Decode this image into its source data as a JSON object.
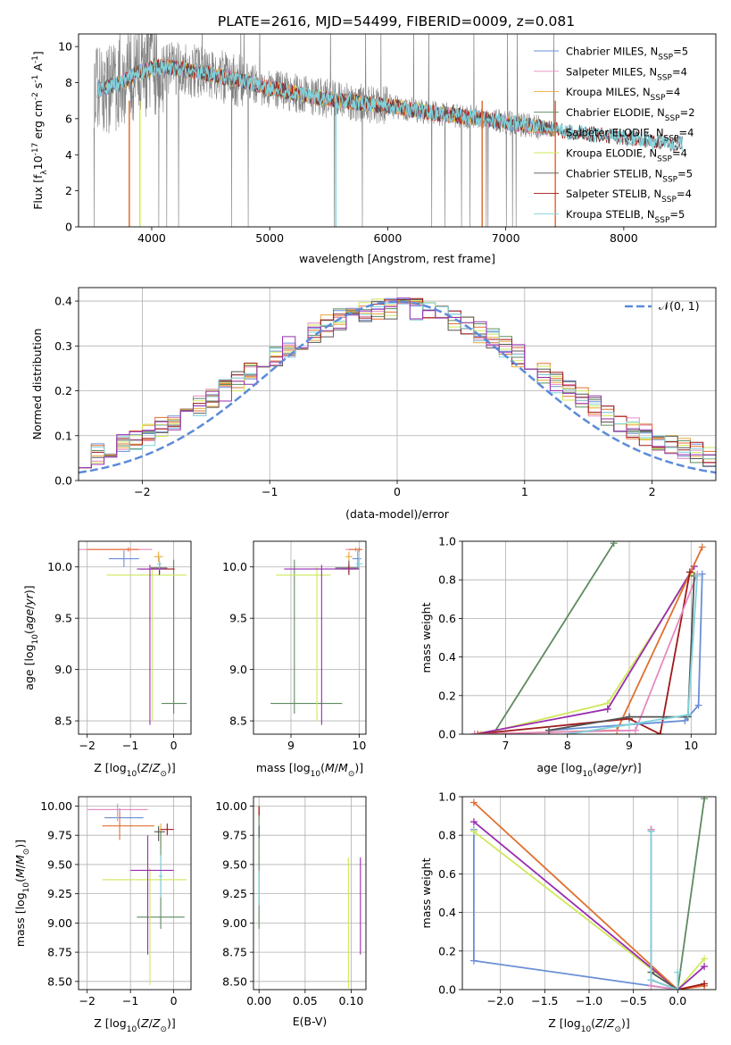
{
  "figure_title": "PLATE=2616, MJD=54499, FIBERID=0009, z=0.081",
  "colors": {
    "Chabrier MILES": "#6a8fd6",
    "Salpeter MILES": "#e58ac0",
    "Kroupa MILES": "#e8a93a",
    "Chabrier ELODIE": "#5e8a60",
    "Salpeter ELODIE": "#e07030",
    "Kroupa ELODIE": "#cfe85a",
    "Chabrier STELIB": "#555555",
    "Salpeter STELIB": "#a01818",
    "Kroupa STELIB": "#7ed3dc",
    "extra": "#9a2db0",
    "data": "#808080",
    "normal": "#5b8bd9"
  },
  "chart_data": [
    {
      "id": "spectrum",
      "type": "line",
      "xlabel": "wavelength [Angstrom, rest frame]",
      "ylabel_parts": [
        "Flux [f",
        "λ",
        "10",
        "-17",
        " erg cm",
        "-2",
        " s",
        "-1",
        " A",
        "-1",
        "]"
      ],
      "xlim": [
        3380,
        8780
      ],
      "ylim": [
        0,
        10.7
      ],
      "xticks": [
        4000,
        5000,
        6000,
        7000,
        8000
      ],
      "yticks": [
        0,
        2,
        4,
        6,
        8,
        10
      ],
      "legend": [
        {
          "base": "Chabrier MILES, N",
          "sub": "SSP",
          "post": "=5",
          "color": "Chabrier MILES"
        },
        {
          "base": "Salpeter MILES, N",
          "sub": "SSP",
          "post": "=4",
          "color": "Salpeter MILES"
        },
        {
          "base": "Kroupa MILES, N",
          "sub": "SSP",
          "post": "=4",
          "color": "Kroupa MILES"
        },
        {
          "base": "Chabrier ELODIE, N",
          "sub": "SSP",
          "post": "=2",
          "color": "Chabrier ELODIE"
        },
        {
          "base": "Salpeter ELODIE, N",
          "sub": "SSP",
          "post": "=4",
          "color": "Salpeter ELODIE"
        },
        {
          "base": "Kroupa ELODIE, N",
          "sub": "SSP",
          "post": "=4",
          "color": "Kroupa ELODIE"
        },
        {
          "base": "Chabrier STELIB, N",
          "sub": "SSP",
          "post": "=5",
          "color": "Chabrier STELIB"
        },
        {
          "base": "Salpeter STELIB, N",
          "sub": "SSP",
          "post": "=4",
          "color": "Salpeter STELIB"
        },
        {
          "base": "Kroupa STELIB, N",
          "sub": "SSP",
          "post": "=5",
          "color": "Kroupa STELIB"
        }
      ],
      "continuum": {
        "x": [
          3550,
          3700,
          3900,
          4100,
          4400,
          4700,
          5000,
          5300,
          5600,
          6000,
          6400,
          6800,
          7200,
          7500,
          7800,
          8100,
          8400
        ],
        "y": [
          7.6,
          7.9,
          8.6,
          8.9,
          8.6,
          8.2,
          7.7,
          7.3,
          7.0,
          6.7,
          6.3,
          6.0,
          5.6,
          5.3,
          5.1,
          4.9,
          4.6
        ]
      },
      "model_ranges": {
        "full": [
          3510,
          7420
        ],
        "elodie": [
          3800,
          6800
        ],
        "miles": [
          3540,
          7420
        ],
        "stelib": [
          3540,
          8500
        ]
      }
    },
    {
      "id": "residuals",
      "type": "histogram",
      "xlabel": "(data-model)/error",
      "ylabel": "Normed distribution",
      "xlim": [
        -2.5,
        2.5
      ],
      "ylim": [
        0,
        0.43
      ],
      "xticks": [
        -2,
        -1,
        0,
        1,
        2
      ],
      "yticks": [
        0,
        0.1,
        0.2,
        0.3,
        0.4
      ],
      "bin_width": 0.1,
      "legend_label": "𝒩(0, 1)",
      "normal_curve": {
        "mean": 0,
        "sigma": 1
      }
    },
    {
      "id": "age-vs-z",
      "type": "errorbar",
      "xlabel_base": "Z [log",
      "xlabel_sub": "10",
      "xlabel_post": "(Z/Z",
      "xlabel_sun": "⊙",
      "xlabel_end": ")]",
      "ylabel_text": "age  [log₁₀(age/yr)]",
      "xlim": [
        -2.2,
        0.4
      ],
      "ylim": [
        8.37,
        10.25
      ],
      "xticks": [
        -2,
        -1,
        0
      ],
      "yticks": [
        8.5,
        9.0,
        9.5,
        10.0
      ],
      "points": [
        {
          "c": "Chabrier MILES",
          "x": -1.15,
          "xe": [
            0.35,
            0.35
          ],
          "y": 10.08,
          "ye": [
            0.08,
            0.08
          ]
        },
        {
          "c": "Salpeter MILES",
          "x": -1.0,
          "xe": [
            1.2,
            0.5
          ],
          "y": 10.17,
          "ye": [
            0.02,
            0.02
          ]
        },
        {
          "c": "Kroupa MILES",
          "x": -0.35,
          "xe": [
            0.1,
            0.1
          ],
          "y": 10.1,
          "ye": [
            0.05,
            0.05
          ]
        },
        {
          "c": "Chabrier ELODIE",
          "x": 0.0,
          "xe": [
            0.28,
            0.3
          ],
          "y": 8.67,
          "ye": [
            0.1,
            1.4
          ]
        },
        {
          "c": "Salpeter ELODIE",
          "x": -1.05,
          "xe": [
            0.95,
            0.25
          ],
          "y": 10.17,
          "ye": [
            0.02,
            0.02
          ]
        },
        {
          "c": "Kroupa ELODIE",
          "x": -0.5,
          "xe": [
            1.05,
            0.8
          ],
          "y": 9.92,
          "ye": [
            1.42,
            0.08
          ]
        },
        {
          "c": "Chabrier STELIB",
          "x": -0.33,
          "xe": [
            0.2,
            0.18
          ],
          "y": 9.99,
          "ye": [
            0.07,
            0.07
          ]
        },
        {
          "c": "Salpeter STELIB",
          "x": -0.33,
          "xe": [
            0.45,
            0.35
          ],
          "y": 9.98,
          "ye": [
            0.05,
            0.05
          ]
        },
        {
          "c": "Kroupa STELIB",
          "x": -0.33,
          "xe": [
            0.05,
            0.05
          ],
          "y": 10.03,
          "ye": [
            0.06,
            0.06
          ]
        },
        {
          "c": "extra",
          "x": -0.55,
          "xe": [
            0.3,
            0.35
          ],
          "y": 9.98,
          "ye": [
            1.52,
            0.04
          ]
        }
      ]
    },
    {
      "id": "age-vs-mass",
      "type": "errorbar",
      "xlabel_base": "mass [log",
      "xlabel_sub": "10",
      "xlabel_post": "(M/M",
      "xlabel_sun": "⊙",
      "xlabel_end": ")]",
      "xlim": [
        8.45,
        10.1
      ],
      "ylim": [
        8.37,
        10.25
      ],
      "xticks": [
        9,
        10
      ],
      "yticks": [
        8.5,
        9.0,
        9.5,
        10.0
      ],
      "points": [
        {
          "c": "Chabrier MILES",
          "x": 9.98,
          "xe": [
            0.08,
            0.05
          ],
          "y": 10.08,
          "ye": [
            0.08,
            0.08
          ]
        },
        {
          "c": "Salpeter MILES",
          "x": 9.95,
          "xe": [
            0.15,
            0.08
          ],
          "y": 10.17,
          "ye": [
            0.02,
            0.02
          ]
        },
        {
          "c": "Kroupa MILES",
          "x": 9.85,
          "xe": [
            0.05,
            0.05
          ],
          "y": 10.1,
          "ye": [
            0.05,
            0.05
          ]
        },
        {
          "c": "Chabrier ELODIE",
          "x": 9.05,
          "xe": [
            0.35,
            0.7
          ],
          "y": 8.67,
          "ye": [
            0.1,
            1.4
          ]
        },
        {
          "c": "Salpeter ELODIE",
          "x": 10.0,
          "xe": [
            0.15,
            0.05
          ],
          "y": 10.17,
          "ye": [
            0.02,
            0.02
          ]
        },
        {
          "c": "Kroupa ELODIE",
          "x": 9.38,
          "xe": [
            0.6,
            0.2
          ],
          "y": 9.92,
          "ye": [
            1.42,
            0.08
          ]
        },
        {
          "c": "Chabrier STELIB",
          "x": 9.85,
          "xe": [
            0.2,
            0.15
          ],
          "y": 9.99,
          "ye": [
            0.07,
            0.07
          ]
        },
        {
          "c": "Salpeter STELIB",
          "x": 9.85,
          "xe": [
            0.1,
            0.1
          ],
          "y": 9.98,
          "ye": [
            0.05,
            0.05
          ]
        },
        {
          "c": "Kroupa STELIB",
          "x": 10.0,
          "xe": [
            0.05,
            0.05
          ],
          "y": 10.03,
          "ye": [
            0.06,
            0.06
          ]
        },
        {
          "c": "extra",
          "x": 9.45,
          "xe": [
            0.55,
            0.55
          ],
          "y": 9.98,
          "ye": [
            1.52,
            0.04
          ]
        }
      ]
    },
    {
      "id": "mass-weight-vs-age",
      "type": "line",
      "xlabel": "age  [log₁₀(age/yr)]",
      "ylabel": "mass weight",
      "xlim": [
        6.3,
        10.4
      ],
      "ylim": [
        0,
        1.0
      ],
      "xticks": [
        7,
        8,
        9,
        10
      ],
      "yticks": [
        0,
        0.2,
        0.4,
        0.6,
        0.8,
        1.0
      ],
      "series": [
        {
          "c": "Chabrier ELODIE",
          "x": [
            6.8,
            8.75
          ],
          "y": [
            0.0,
            0.99
          ]
        },
        {
          "c": "Kroupa ELODIE",
          "x": [
            6.6,
            8.65,
            10.02
          ],
          "y": [
            0.0,
            0.16,
            0.84
          ]
        },
        {
          "c": "extra",
          "x": [
            6.5,
            8.65,
            10.05
          ],
          "y": [
            0.0,
            0.13,
            0.87
          ]
        },
        {
          "c": "Salpeter ELODIE",
          "x": [
            6.55,
            8.8,
            10.18
          ],
          "y": [
            0.0,
            0.02,
            0.97
          ]
        },
        {
          "c": "Salpeter STELIB",
          "x": [
            6.5,
            9.0,
            9.5,
            9.98
          ],
          "y": [
            0.0,
            0.08,
            0.0,
            0.84
          ]
        },
        {
          "c": "Salpeter MILES",
          "x": [
            6.5,
            9.1,
            10.1
          ],
          "y": [
            0.0,
            0.02,
            0.83
          ]
        },
        {
          "c": "Chabrier MILES",
          "x": [
            7.7,
            9.9,
            10.12,
            10.18
          ],
          "y": [
            0.02,
            0.07,
            0.15,
            0.83
          ]
        },
        {
          "c": "Chabrier STELIB",
          "x": [
            7.7,
            9.0,
            9.95,
            10.05
          ],
          "y": [
            0.02,
            0.09,
            0.09,
            0.82
          ]
        },
        {
          "c": "Kroupa STELIB",
          "x": [
            8.0,
            9.0,
            9.95,
            10.1
          ],
          "y": [
            0.0,
            0.05,
            0.1,
            0.82
          ]
        }
      ]
    },
    {
      "id": "mass-vs-z",
      "type": "errorbar",
      "xlabel_base": "Z [log",
      "xlabel_sub": "10",
      "xlabel_post": "(Z/Z",
      "xlabel_sun": "⊙",
      "xlabel_end": ")]",
      "ylabel_text": "mass [log₁₀(M/M⊙)]",
      "xlim": [
        -2.2,
        0.4
      ],
      "ylim": [
        8.43,
        10.08
      ],
      "xticks": [
        -2,
        -1,
        0
      ],
      "yticks": [
        8.5,
        8.75,
        9.0,
        9.25,
        9.5,
        9.75,
        10.0
      ],
      "points": [
        {
          "c": "Chabrier MILES",
          "x": -1.25,
          "xe": [
            0.35,
            0.55
          ],
          "y": 9.9,
          "ye": [
            0.08,
            0.08
          ]
        },
        {
          "c": "Salpeter MILES",
          "x": -1.3,
          "xe": [
            0.7,
            0.7
          ],
          "y": 9.97,
          "ye": [
            0.1,
            0.05
          ]
        },
        {
          "c": "Kroupa MILES",
          "x": -0.3,
          "xe": [
            0.05,
            0.05
          ],
          "y": 9.8,
          "ye": [
            0.15,
            0.05
          ]
        },
        {
          "c": "Chabrier ELODIE",
          "x": -0.3,
          "xe": [
            0.55,
            0.55
          ],
          "y": 9.05,
          "ye": [
            0.1,
            0.73
          ]
        },
        {
          "c": "Salpeter ELODIE",
          "x": -1.25,
          "xe": [
            0.4,
            0.8
          ],
          "y": 9.83,
          "ye": [
            0.12,
            0.12
          ]
        },
        {
          "c": "Kroupa ELODIE",
          "x": -0.55,
          "xe": [
            1.1,
            0.85
          ],
          "y": 9.37,
          "ye": [
            0.9,
            0.1
          ]
        },
        {
          "c": "Chabrier STELIB",
          "x": -0.35,
          "xe": [
            0.1,
            0.15
          ],
          "y": 9.78,
          "ye": [
            0.08,
            0.05
          ]
        },
        {
          "c": "Salpeter STELIB",
          "x": -0.15,
          "xe": [
            0.15,
            0.15
          ],
          "y": 9.8,
          "ye": [
            0.05,
            0.05
          ]
        },
        {
          "c": "Kroupa STELIB",
          "x": -0.3,
          "xe": [
            0.05,
            0.05
          ],
          "y": 9.4,
          "ye": [
            0.18,
            0.18
          ]
        },
        {
          "c": "extra",
          "x": -0.6,
          "xe": [
            0.4,
            0.6
          ],
          "y": 9.45,
          "ye": [
            0.72,
            0.3
          ]
        }
      ]
    },
    {
      "id": "mass-vs-ebv",
      "type": "errorbar",
      "xlabel": "E(B-V)",
      "xlim": [
        -0.006,
        0.116
      ],
      "ylim": [
        8.43,
        10.08
      ],
      "xticks": [
        0.0,
        0.05,
        0.1
      ],
      "yticks": [
        8.5,
        8.75,
        9.0,
        9.25,
        9.5,
        9.75,
        10.0
      ],
      "points": [
        {
          "c": "Chabrier MILES",
          "x": 0.0,
          "xe": [
            0,
            0
          ],
          "y": 9.95,
          "ye": [
            0.05,
            0.05
          ]
        },
        {
          "c": "Salpeter MILES",
          "x": 0.0,
          "xe": [
            0,
            0
          ],
          "y": 9.97,
          "ye": [
            0.03,
            0.03
          ]
        },
        {
          "c": "Kroupa MILES",
          "x": 0.0,
          "xe": [
            0,
            0
          ],
          "y": 9.97,
          "ye": [
            0.03,
            0.03
          ]
        },
        {
          "c": "Chabrier ELODIE",
          "x": 0.0,
          "xe": [
            0,
            0
          ],
          "y": 9.05,
          "ye": [
            0.1,
            0.9
          ]
        },
        {
          "c": "Salpeter ELODIE",
          "x": 0.0,
          "xe": [
            0,
            0
          ],
          "y": 9.97,
          "ye": [
            0.03,
            0.03
          ]
        },
        {
          "c": "Kroupa ELODIE",
          "x": 0.097,
          "xe": [
            0,
            0
          ],
          "y": 9.56,
          "ye": [
            1.12,
            0.0
          ]
        },
        {
          "c": "Chabrier STELIB",
          "x": 0.0,
          "xe": [
            0,
            0
          ],
          "y": 9.78,
          "ye": [
            0.05,
            0.05
          ]
        },
        {
          "c": "Salpeter STELIB",
          "x": 0.0,
          "xe": [
            0,
            0
          ],
          "y": 9.96,
          "ye": [
            0.04,
            0.04
          ]
        },
        {
          "c": "Kroupa STELIB",
          "x": 0.0,
          "xe": [
            0,
            0
          ],
          "y": 9.3,
          "ye": [
            0.15,
            0.15
          ]
        },
        {
          "c": "extra",
          "x": 0.11,
          "xe": [
            0,
            0
          ],
          "y": 9.55,
          "ye": [
            0.82,
            0.01
          ]
        }
      ]
    },
    {
      "id": "mass-weight-vs-z",
      "type": "line",
      "xlabel_base": "Z [log",
      "xlabel_sub": "10",
      "xlabel_post": "(Z/Z",
      "xlabel_sun": "⊙",
      "xlabel_end": ")]",
      "ylabel": "mass weight",
      "xlim": [
        -2.43,
        0.43
      ],
      "ylim": [
        0,
        1.0
      ],
      "xticks": [
        -2.0,
        -1.5,
        -1.0,
        -0.5,
        0.0
      ],
      "yticks": [
        0,
        0.2,
        0.4,
        0.6,
        0.8,
        1.0
      ],
      "series": [
        {
          "c": "Chabrier MILES",
          "x": [
            -2.3,
            -2.3,
            0.0
          ],
          "y": [
            0.83,
            0.15,
            0.0
          ]
        },
        {
          "c": "Kroupa ELODIE",
          "x": [
            -2.3,
            0.0,
            0.3
          ],
          "y": [
            0.82,
            0.0,
            0.16
          ]
        },
        {
          "c": "extra",
          "x": [
            -2.3,
            0.0,
            0.3
          ],
          "y": [
            0.87,
            0.0,
            0.12
          ]
        },
        {
          "c": "Salpeter ELODIE",
          "x": [
            -2.3,
            0.0,
            0.3
          ],
          "y": [
            0.97,
            0.0,
            0.02
          ]
        },
        {
          "c": "Chabrier ELODIE",
          "x": [
            0.0,
            0.3
          ],
          "y": [
            0.0,
            0.99
          ]
        },
        {
          "c": "Salpeter STELIB",
          "x": [
            -0.3,
            -0.3,
            0.0,
            0.3
          ],
          "y": [
            0.83,
            0.05,
            0.0,
            0.03
          ]
        },
        {
          "c": "Chabrier STELIB",
          "x": [
            -0.3,
            -0.3,
            0.0
          ],
          "y": [
            0.82,
            0.09,
            0.0
          ]
        },
        {
          "c": "Salpeter MILES",
          "x": [
            -0.3,
            -0.3,
            0.0
          ],
          "y": [
            0.83,
            0.02,
            0.0
          ]
        },
        {
          "c": "Kroupa STELIB",
          "x": [
            -0.3,
            -0.3,
            0.0,
            0.0
          ],
          "y": [
            0.82,
            0.05,
            0.0,
            0.09
          ]
        }
      ]
    }
  ]
}
